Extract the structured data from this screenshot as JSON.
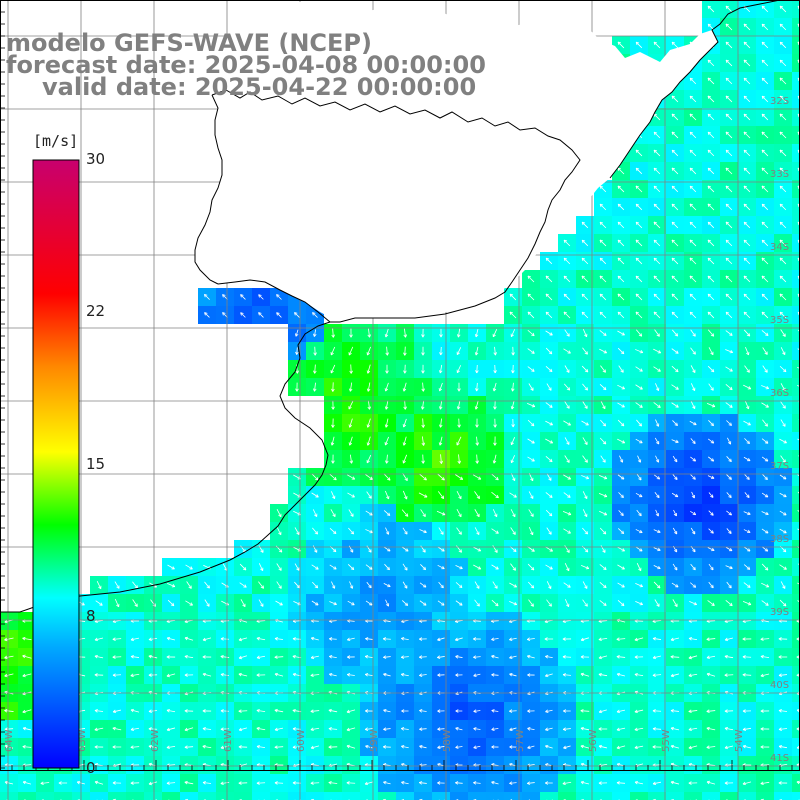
{
  "titles": {
    "model": "modelo GEFS-WAVE (NCEP)",
    "forecast": "forecast date: 2025-04-08 00:00:00",
    "valid": "valid date: 2025-04-22 00:00:00"
  },
  "colorbar": {
    "unit": "[m/s]",
    "ticks": [
      "30",
      "22",
      "15",
      "8",
      "0"
    ],
    "min": 0,
    "max": 30,
    "stops": [
      "#0000ff",
      "#00aaff",
      "#00ffff",
      "#00ff00",
      "#ffff00",
      "#ff8800",
      "#ff0000",
      "#c8006e"
    ]
  },
  "map": {
    "latitude_labels": [
      "32S",
      "33S",
      "34S",
      "35S",
      "36S",
      "37S",
      "38S",
      "39S",
      "40S",
      "41S"
    ],
    "longitude_labels": [
      "64W",
      "63W",
      "62W",
      "61W",
      "60W",
      "59W",
      "58W",
      "57W",
      "56W",
      "55W",
      "54W"
    ],
    "land_color": "#ffffff",
    "coastline_color": "#000000",
    "grid_color": "#808080",
    "arrow_color": "#ffffff"
  }
}
